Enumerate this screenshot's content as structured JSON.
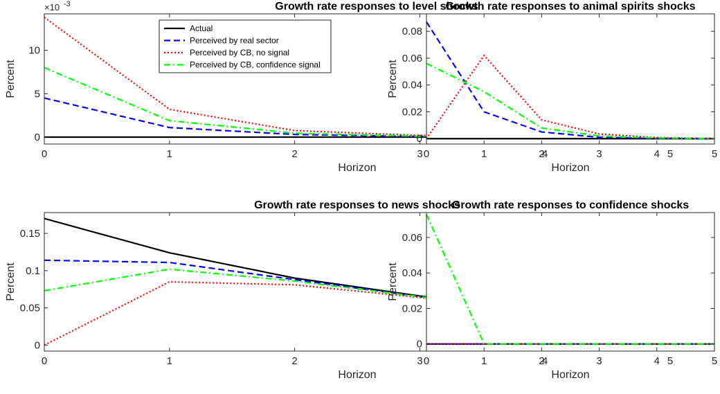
{
  "chart_data": [
    {
      "type": "line",
      "title": "Growth rate responses to level shocks",
      "xlabel": "Horizon",
      "ylabel": "Percent",
      "y_multiplier_label": "×10",
      "y_multiplier_exponent": "-3",
      "x": [
        0,
        1,
        2,
        3,
        4,
        5
      ],
      "xlim": [
        0,
        5
      ],
      "ylim": [
        -0.8,
        14.2
      ],
      "xticks": [
        "0",
        "1",
        "2",
        "3",
        "4",
        "5"
      ],
      "yticks": [
        {
          "value": 0,
          "label": "0"
        },
        {
          "value": 5,
          "label": "5"
        },
        {
          "value": 10,
          "label": "10"
        }
      ],
      "legend_position": "top-right",
      "series": [
        {
          "name": "Actual",
          "color": "#000000",
          "dash": "solid",
          "values": [
            0,
            0,
            0,
            0,
            0,
            0
          ]
        },
        {
          "name": "Perceived by real sector",
          "color": "#0000ff",
          "dash": "dashed",
          "values": [
            4.5,
            1.1,
            0.3,
            0.08,
            0.02,
            0.0
          ]
        },
        {
          "name": "Perceived by CB, no signal",
          "color": "#ff0000",
          "dash": "dotted",
          "values": [
            13.8,
            3.2,
            0.75,
            0.2,
            0.05,
            0.01
          ]
        },
        {
          "name": "Perceived by CB, confidence signal",
          "color": "#00ff00",
          "dash": "dashdot",
          "values": [
            8.0,
            1.9,
            0.45,
            0.1,
            0.03,
            0.0
          ]
        }
      ]
    },
    {
      "type": "line",
      "title": "Growth rate responses to animal spirits shocks",
      "xlabel": "Horizon",
      "ylabel": "Percent",
      "x": [
        0,
        1,
        2,
        3,
        4,
        5
      ],
      "xlim": [
        0,
        5
      ],
      "ylim": [
        -0.004,
        0.093
      ],
      "xticks": [
        "0",
        "1",
        "2",
        "3",
        "4",
        "5"
      ],
      "yticks": [
        {
          "value": 0,
          "label": "0"
        },
        {
          "value": 0.02,
          "label": "0.02"
        },
        {
          "value": 0.04,
          "label": "0.04"
        },
        {
          "value": 0.06,
          "label": "0.06"
        },
        {
          "value": 0.08,
          "label": "0.08"
        }
      ],
      "series": [
        {
          "name": "Actual",
          "color": "#000000",
          "dash": "solid",
          "values": [
            0,
            0,
            0,
            0,
            0,
            0
          ]
        },
        {
          "name": "Perceived by real sector",
          "color": "#0000ff",
          "dash": "dashed",
          "values": [
            0.087,
            0.02,
            0.005,
            0.001,
            0.0003,
            0.0
          ]
        },
        {
          "name": "Perceived by CB, no signal",
          "color": "#ff0000",
          "dash": "dotted",
          "values": [
            0.0,
            0.062,
            0.014,
            0.0035,
            0.0008,
            0.0002
          ]
        },
        {
          "name": "Perceived by CB, confidence signal",
          "color": "#00ff00",
          "dash": "dashdot",
          "values": [
            0.056,
            0.035,
            0.008,
            0.002,
            0.0005,
            0.0001
          ]
        }
      ]
    },
    {
      "type": "line",
      "title": "Growth rate responses to news shocks",
      "xlabel": "Horizon",
      "ylabel": "Percent",
      "x": [
        0,
        1,
        2,
        3,
        4,
        5
      ],
      "xlim": [
        0,
        5
      ],
      "ylim": [
        -0.008,
        0.178
      ],
      "xticks": [
        "0",
        "1",
        "2",
        "3",
        "4",
        "5"
      ],
      "yticks": [
        {
          "value": 0,
          "label": "0"
        },
        {
          "value": 0.05,
          "label": "0.05"
        },
        {
          "value": 0.1,
          "label": "0.1"
        },
        {
          "value": 0.15,
          "label": "0.15"
        }
      ],
      "series": [
        {
          "name": "Actual",
          "color": "#000000",
          "dash": "solid",
          "values": [
            0.17,
            0.124,
            0.09,
            0.066,
            0.048,
            0.035
          ]
        },
        {
          "name": "Perceived by real sector",
          "color": "#0000ff",
          "dash": "dashed",
          "values": [
            0.114,
            0.111,
            0.088,
            0.065,
            0.048,
            0.035
          ]
        },
        {
          "name": "Perceived by CB, no signal",
          "color": "#ff0000",
          "dash": "dotted",
          "values": [
            0.0,
            0.085,
            0.081,
            0.064,
            0.047,
            0.035
          ]
        },
        {
          "name": "Perceived by CB, confidence signal",
          "color": "#00ff00",
          "dash": "dashdot",
          "values": [
            0.073,
            0.102,
            0.086,
            0.065,
            0.048,
            0.035
          ]
        }
      ]
    },
    {
      "type": "line",
      "title": "Growth rate responses to confidence shocks",
      "xlabel": "Horizon",
      "ylabel": "Percent",
      "x": [
        0,
        1,
        2,
        3,
        4,
        5
      ],
      "xlim": [
        0,
        5
      ],
      "ylim": [
        -0.004,
        0.074
      ],
      "xticks": [
        "0",
        "1",
        "2",
        "3",
        "4",
        "5"
      ],
      "yticks": [
        {
          "value": 0,
          "label": "0"
        },
        {
          "value": 0.02,
          "label": "0.02"
        },
        {
          "value": 0.04,
          "label": "0.04"
        },
        {
          "value": 0.06,
          "label": "0.06"
        }
      ],
      "series": [
        {
          "name": "Actual",
          "color": "#000000",
          "dash": "solid",
          "values": [
            0,
            0,
            0,
            0,
            0,
            0
          ]
        },
        {
          "name": "Perceived by real sector",
          "color": "#0000ff",
          "dash": "dashed",
          "values": [
            0,
            0,
            0,
            0,
            0,
            0
          ]
        },
        {
          "name": "Perceived by CB, no signal",
          "color": "#ff0000",
          "dash": "dotted",
          "values": [
            0,
            0,
            0,
            0,
            0,
            0
          ]
        },
        {
          "name": "Perceived by CB, confidence signal",
          "color": "#00ff00",
          "dash": "dashdot",
          "values": [
            0.073,
            0.0,
            0.0,
            0.0,
            0.0,
            0.0
          ]
        }
      ]
    }
  ]
}
